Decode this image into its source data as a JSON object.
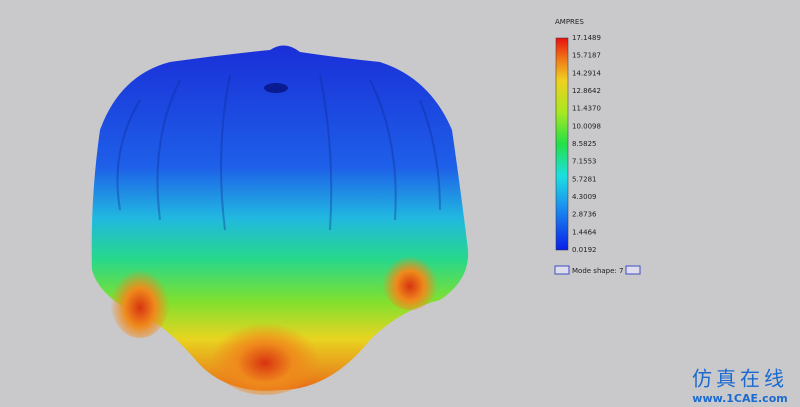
{
  "legend": {
    "title": "AMPRES",
    "labels": [
      "17.1489",
      "15.7187",
      "14.2914",
      "12.8642",
      "11.4370",
      "10.0098",
      "8.5825",
      "7.1553",
      "5.7281",
      "4.3009",
      "2.8736",
      "1.4464",
      "0.0192"
    ]
  },
  "mode_shape": {
    "label": "Mode shape: 7"
  },
  "watermark": {
    "title": "仿真在线",
    "url": "www.1CAE.com"
  }
}
